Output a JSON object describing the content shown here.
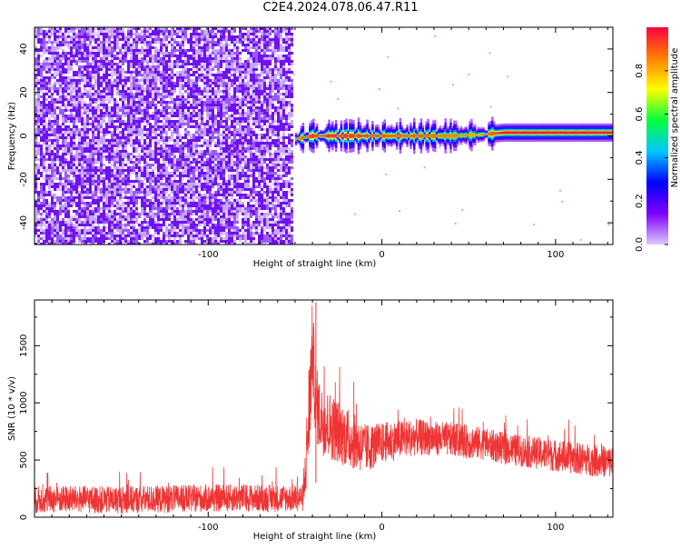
{
  "title": "C2E4.2024.078.06.47.R11",
  "colors": {
    "snr_line": "#ef3434",
    "speckle_dark": "#6f12f0",
    "speckle_light": "#dcc8fb",
    "frame": "#000000"
  },
  "chart_data": [
    {
      "type": "heatmap",
      "xlabel": "Height of straight line (km)",
      "ylabel": "Frequency (Hz)",
      "xlim": [
        -200,
        133
      ],
      "ylim": [
        -50,
        50
      ],
      "xticks": [
        -100,
        0,
        100
      ],
      "yticks": [
        -40,
        -20,
        0,
        20,
        40
      ],
      "grid": false,
      "colorbar": {
        "label": "Normalized spectral amplitude",
        "range": [
          0,
          1
        ],
        "ticks": [
          "0.0",
          "0.2",
          "0.4",
          "0.6",
          "0.8"
        ],
        "colormap": [
          "#dcc8fb",
          "#7b00ff",
          "#0000ff",
          "#00c8ff",
          "#00ff3c",
          "#ffff00",
          "#ff8000",
          "#ff0040"
        ]
      },
      "noise_region": {
        "x": [
          -200,
          -52
        ],
        "y": [
          -50,
          50
        ],
        "amplitude": [
          0.05,
          0.2
        ]
      },
      "signal_band": [
        {
          "x": -50,
          "freq": -1.5,
          "amplitude": 0.75
        },
        {
          "x": -40,
          "freq": 0,
          "amplitude": 0.85
        },
        {
          "x": -20,
          "freq": 0,
          "amplitude": 0.85
        },
        {
          "x": 0,
          "freq": 0,
          "amplitude": 0.8
        },
        {
          "x": 20,
          "freq": 0,
          "amplitude": 0.8
        },
        {
          "x": 40,
          "freq": 0,
          "amplitude": 0.75
        },
        {
          "x": 55,
          "freq": 0.5,
          "amplitude": 0.7
        },
        {
          "x": 70,
          "freq": 1.5,
          "amplitude": 0.9
        },
        {
          "x": 100,
          "freq": 1.5,
          "amplitude": 0.9
        },
        {
          "x": 133,
          "freq": 1.5,
          "amplitude": 0.9
        }
      ]
    },
    {
      "type": "line",
      "xlabel": "Height of straight line (km)",
      "ylabel": "SNR (10 * v/v)",
      "xlim": [
        -200,
        133
      ],
      "ylim": [
        0,
        1900
      ],
      "xticks": [
        -100,
        0,
        100
      ],
      "yticks": [
        0,
        500,
        1000,
        1500
      ],
      "grid": false,
      "series": [
        {
          "x": [
            -200,
            -180,
            -160,
            -140,
            -120,
            -100,
            -80,
            -60,
            -45,
            -42,
            -40,
            -38,
            -35,
            -30,
            -25,
            -20,
            -15,
            -10,
            -5,
            0,
            10,
            20,
            30,
            40,
            50,
            60,
            70,
            80,
            90,
            100,
            110,
            120,
            133
          ],
          "y": [
            150,
            160,
            150,
            155,
            160,
            165,
            170,
            165,
            170,
            900,
            1500,
            1000,
            850,
            800,
            750,
            700,
            650,
            600,
            620,
            650,
            680,
            700,
            690,
            680,
            660,
            640,
            600,
            580,
            560,
            540,
            520,
            500,
            480
          ],
          "spread": [
            120,
            120,
            120,
            120,
            120,
            120,
            120,
            120,
            120,
            500,
            400,
            350,
            300,
            300,
            280,
            260,
            240,
            220,
            200,
            180,
            170,
            160,
            150,
            150,
            150,
            140,
            140,
            140,
            140,
            140,
            140,
            140,
            140
          ]
        }
      ]
    }
  ]
}
